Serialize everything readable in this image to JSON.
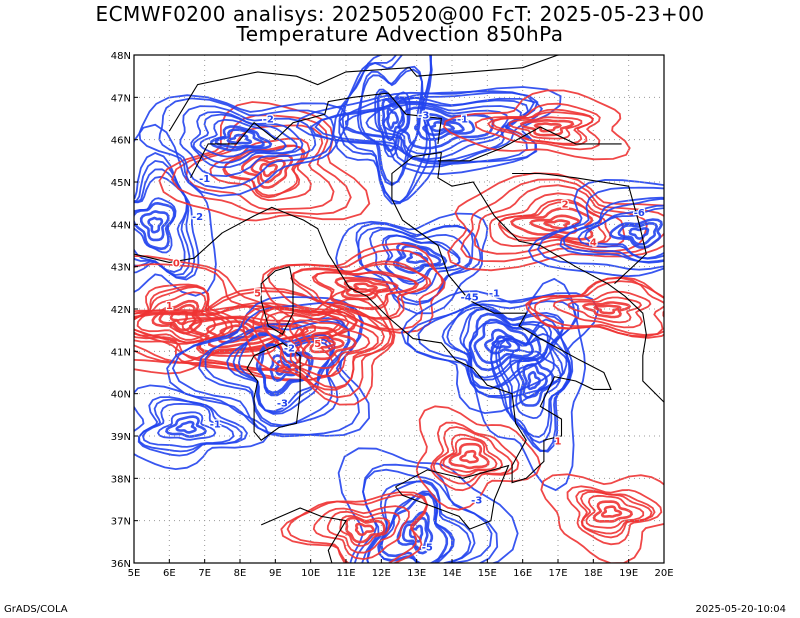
{
  "title": {
    "line1": "ECMWF0200 analisys: 20250520@00 FcT: 2025-05-23+00",
    "line2": "Temperature Advection 850hPa"
  },
  "footer": {
    "left": "GrADS/COLA",
    "right": "2025-05-20-10:04"
  },
  "map": {
    "lon_range": [
      5,
      20
    ],
    "lat_range": [
      36,
      48
    ],
    "lon_ticks": [
      "5E",
      "6E",
      "7E",
      "8E",
      "9E",
      "10E",
      "11E",
      "12E",
      "13E",
      "14E",
      "15E",
      "16E",
      "17E",
      "18E",
      "19E",
      "20E"
    ],
    "lat_ticks": [
      "36N",
      "37N",
      "38N",
      "39N",
      "40N",
      "41N",
      "42N",
      "43N",
      "44N",
      "45N",
      "46N",
      "47N",
      "48N"
    ],
    "grid": "dotted",
    "colors": {
      "warm_advection": "#ee3333",
      "cold_advection": "#2244ee",
      "coastline": "#000000",
      "grid": "#999999"
    }
  },
  "chart_data": {
    "type": "contour",
    "field": "Temperature Advection 850hPa",
    "positive_color": "#ee3333",
    "negative_color": "#2244ee",
    "xlim": [
      5,
      20
    ],
    "ylim": [
      36,
      48
    ],
    "centers": [
      {
        "lon": 5.6,
        "lat": 44.0,
        "sign": -1,
        "strength": 3
      },
      {
        "lon": 6.3,
        "lat": 41.8,
        "sign": 1,
        "strength": 3
      },
      {
        "lon": 8.0,
        "lat": 41.4,
        "sign": 1,
        "strength": 4
      },
      {
        "lon": 9.2,
        "lat": 40.6,
        "sign": -1,
        "strength": 4
      },
      {
        "lon": 10.4,
        "lat": 41.2,
        "sign": 1,
        "strength": 3
      },
      {
        "lon": 8.8,
        "lat": 45.3,
        "sign": 1,
        "strength": 3
      },
      {
        "lon": 8.0,
        "lat": 46.0,
        "sign": -1,
        "strength": 3
      },
      {
        "lon": 12.3,
        "lat": 46.5,
        "sign": -1,
        "strength": 3
      },
      {
        "lon": 13.7,
        "lat": 46.3,
        "sign": -1,
        "strength": 4
      },
      {
        "lon": 13.0,
        "lat": 43.2,
        "sign": -1,
        "strength": 3
      },
      {
        "lon": 11.5,
        "lat": 42.5,
        "sign": 1,
        "strength": 3
      },
      {
        "lon": 15.4,
        "lat": 41.2,
        "sign": -1,
        "strength": 4
      },
      {
        "lon": 16.3,
        "lat": 40.3,
        "sign": -1,
        "strength": 3
      },
      {
        "lon": 17.0,
        "lat": 44.0,
        "sign": 1,
        "strength": 3
      },
      {
        "lon": 19.3,
        "lat": 43.8,
        "sign": -1,
        "strength": 3
      },
      {
        "lon": 18.4,
        "lat": 42.0,
        "sign": 1,
        "strength": 2
      },
      {
        "lon": 13.0,
        "lat": 36.7,
        "sign": -1,
        "strength": 4
      },
      {
        "lon": 11.5,
        "lat": 36.8,
        "sign": 1,
        "strength": 2
      },
      {
        "lon": 18.5,
        "lat": 37.2,
        "sign": 1,
        "strength": 2
      },
      {
        "lon": 16.7,
        "lat": 46.3,
        "sign": 1,
        "strength": 2
      },
      {
        "lon": 6.5,
        "lat": 39.2,
        "sign": -1,
        "strength": 2
      },
      {
        "lon": 14.5,
        "lat": 38.5,
        "sign": 1,
        "strength": 2
      }
    ],
    "contour_labels": [
      {
        "lon": 6.8,
        "lat": 44.1,
        "text": "-2"
      },
      {
        "lon": 8.8,
        "lat": 46.4,
        "text": "-2"
      },
      {
        "lon": 7.0,
        "lat": 45.0,
        "text": "-1"
      },
      {
        "lon": 9.4,
        "lat": 41.0,
        "text": "-2"
      },
      {
        "lon": 9.2,
        "lat": 39.7,
        "text": "-3"
      },
      {
        "lon": 10.2,
        "lat": 41.1,
        "text": "5"
      },
      {
        "lon": 8.5,
        "lat": 42.3,
        "text": "5"
      },
      {
        "lon": 6.0,
        "lat": 42.0,
        "text": "1"
      },
      {
        "lon": 13.2,
        "lat": 46.5,
        "text": "-3"
      },
      {
        "lon": 14.3,
        "lat": 46.4,
        "text": "-1"
      },
      {
        "lon": 14.5,
        "lat": 42.2,
        "text": "-45"
      },
      {
        "lon": 15.2,
        "lat": 42.3,
        "text": "-1"
      },
      {
        "lon": 17.2,
        "lat": 44.4,
        "text": "2"
      },
      {
        "lon": 18.0,
        "lat": 43.5,
        "text": "4"
      },
      {
        "lon": 19.3,
        "lat": 44.2,
        "text": "-6"
      },
      {
        "lon": 14.7,
        "lat": 37.4,
        "text": "-3"
      },
      {
        "lon": 13.3,
        "lat": 36.3,
        "text": "-5"
      },
      {
        "lon": 7.3,
        "lat": 39.2,
        "text": "-1"
      },
      {
        "lon": 6.2,
        "lat": 43.0,
        "text": "0"
      },
      {
        "lon": 17.0,
        "lat": 38.8,
        "text": "1"
      }
    ]
  }
}
